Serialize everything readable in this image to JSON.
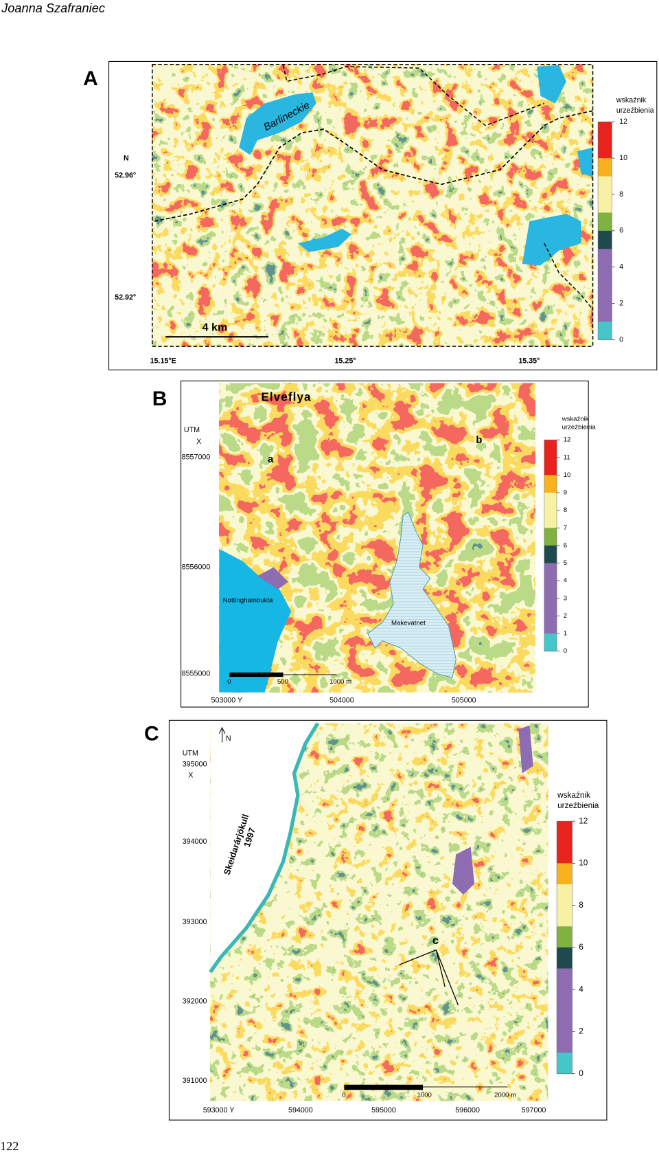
{
  "header": {
    "author": "Joanna Szafraniec"
  },
  "page_number": "122",
  "panels": [
    {
      "letter": "A",
      "legend": {
        "title": [
          "wskaźnik",
          "urzeźbienia"
        ],
        "ticks": [
          12,
          10,
          8,
          6,
          4,
          2,
          0
        ]
      },
      "left_labels": [
        "N",
        "52.96°",
        "52.92°"
      ],
      "bottom_labels": [
        "15.15°E",
        "15.25°",
        "15.35°"
      ],
      "map_labels": [
        "Barlineckie"
      ],
      "scale_labels": [
        "4 km"
      ]
    },
    {
      "letter": "B",
      "legend": {
        "title": [
          "wskaźnik",
          "urzeźbienia"
        ],
        "ticks": [
          12,
          11,
          10,
          9,
          8,
          7,
          6,
          5,
          4,
          3,
          2,
          1,
          0
        ]
      },
      "left_labels": [
        "UTM",
        "X",
        "8557000",
        "8556000",
        "8555000"
      ],
      "bottom_labels": [
        "503000 Y",
        "504000",
        "505000"
      ],
      "map_labels": [
        "Elveflya",
        "a",
        "b",
        "Nottinghambukta",
        "Makevatnet"
      ],
      "scale_labels": [
        "0",
        "500",
        "1000 m"
      ]
    },
    {
      "letter": "C",
      "legend": {
        "title": [
          "wskaźnik",
          "urzeźbienia"
        ],
        "ticks": [
          12,
          10,
          8,
          6,
          4,
          2,
          0
        ]
      },
      "left_labels": [
        "UTM",
        "395000",
        "X",
        "394000",
        "393000",
        "392000",
        "391000"
      ],
      "bottom_labels": [
        "593000 Y",
        "594000",
        "595000",
        "596000",
        "597000"
      ],
      "map_labels": [
        "N",
        "Skeidarárjökull",
        "1997",
        "c"
      ],
      "scale_labels": [
        "0",
        "1000",
        "2000 m"
      ]
    }
  ]
}
